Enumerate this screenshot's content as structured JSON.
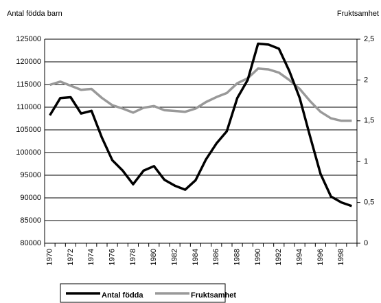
{
  "chart_data": {
    "type": "line",
    "y_title": "Antal födda barn",
    "y2_title": "Fruktsamhet",
    "categories": [
      "1970",
      null,
      "1972",
      null,
      "1974",
      null,
      "1976",
      null,
      "1978",
      null,
      "1980",
      null,
      "1982",
      null,
      "1984",
      null,
      "1986",
      null,
      "1988",
      null,
      "1990",
      null,
      "1992",
      null,
      "1994",
      null,
      "1996",
      null,
      "1998",
      null
    ],
    "series": [
      {
        "name": "Antal födda",
        "color": "#000000",
        "axis": "y",
        "values": [
          108200,
          112000,
          112200,
          108600,
          109200,
          103300,
          98300,
          96000,
          93000,
          96000,
          97000,
          94000,
          92700,
          91800,
          93900,
          98500,
          102000,
          104700,
          112000,
          116000,
          124000,
          123800,
          122900,
          118000,
          112000,
          103500,
          95300,
          90300,
          89000,
          88200
        ]
      },
      {
        "name": "Fruktsamhet",
        "color": "#999999",
        "axis": "y2",
        "values": [
          1.94,
          1.98,
          1.93,
          1.88,
          1.89,
          1.78,
          1.69,
          1.65,
          1.6,
          1.66,
          1.68,
          1.63,
          1.62,
          1.61,
          1.65,
          1.73,
          1.79,
          1.84,
          1.96,
          2.02,
          2.14,
          2.13,
          2.09,
          2.0,
          1.89,
          1.74,
          1.61,
          1.53,
          1.5,
          1.5
        ]
      }
    ],
    "ylim": [
      80000,
      125000
    ],
    "yticks": [
      80000,
      85000,
      90000,
      95000,
      100000,
      105000,
      110000,
      115000,
      120000,
      125000
    ],
    "y2lim": [
      0,
      2.5
    ],
    "y2ticks": [
      0,
      {
        "value": 0.5,
        "label": "0,5"
      },
      1,
      {
        "value": 1.5,
        "label": "1,5"
      },
      2,
      {
        "value": 2.5,
        "label": "2,5"
      }
    ],
    "grid": true,
    "legend": "bottom"
  }
}
